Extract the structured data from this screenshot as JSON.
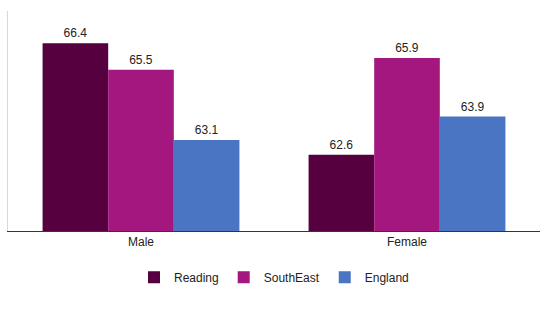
{
  "chart_data": {
    "type": "bar",
    "categories": [
      "Male",
      "Female"
    ],
    "series": [
      {
        "name": "Reading",
        "color": "#56003f",
        "values": [
          66.4,
          62.6
        ]
      },
      {
        "name": "SouthEast",
        "color": "#a3177f",
        "values": [
          65.5,
          65.9
        ]
      },
      {
        "name": "England",
        "color": "#4a75c3",
        "values": [
          63.1,
          63.9
        ]
      }
    ],
    "ylim": [
      60,
      67.5
    ],
    "grid": false,
    "data_labels": true,
    "tick_labels": "x",
    "legend": "bottom"
  }
}
